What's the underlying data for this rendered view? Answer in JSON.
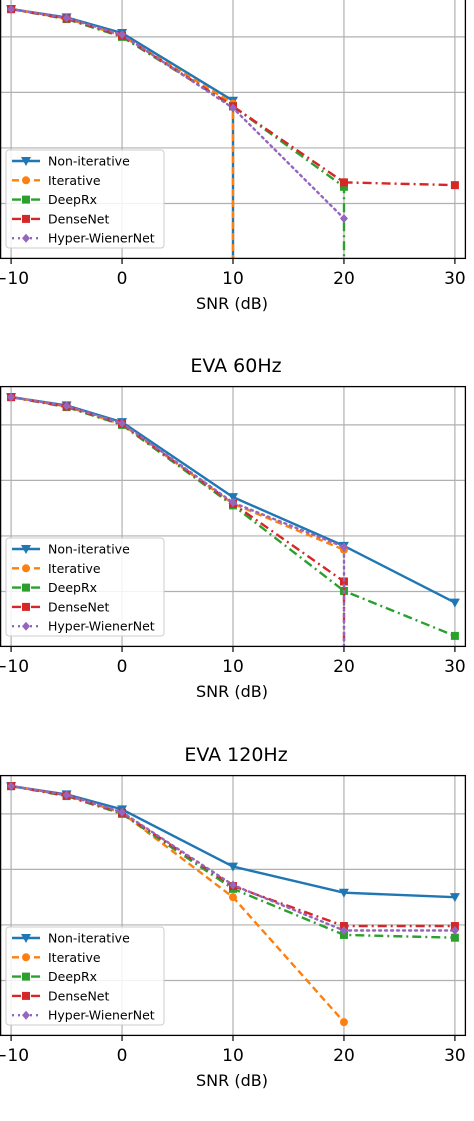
{
  "chart_data": [
    {
      "type": "line",
      "title": "",
      "xlabel": "SNR (dB)",
      "ylabel": "",
      "xticks": [
        -10,
        0,
        10,
        20,
        30
      ],
      "xlim": [
        -11,
        31
      ],
      "ylim": [
        -6.0,
        -1.3
      ],
      "grid": true,
      "legend_position": "lower-left",
      "series": [
        {
          "name": "Non-iterative",
          "color": "#1f77b4",
          "marker": "triangle-down",
          "linestyle": "solid",
          "x": [
            -10,
            -5,
            0,
            10,
            10
          ],
          "y": [
            -1.5,
            -1.65,
            -1.93,
            -3.15,
            -6.2
          ]
        },
        {
          "name": "Iterative",
          "color": "#ff7f0e",
          "marker": "circle",
          "linestyle": "dashed",
          "x": [
            -10,
            -5,
            0,
            10,
            10
          ],
          "y": [
            -1.5,
            -1.67,
            -1.98,
            -3.2,
            -6.2
          ]
        },
        {
          "name": "DeepRx",
          "color": "#2ca02c",
          "marker": "square",
          "linestyle": "dashdot",
          "x": [
            -10,
            -5,
            0,
            10,
            20,
            20
          ],
          "y": [
            -1.5,
            -1.68,
            -2.0,
            -3.25,
            -4.7,
            -6.2
          ]
        },
        {
          "name": "DenseNet",
          "color": "#d62728",
          "marker": "square",
          "linestyle": "dashdot",
          "x": [
            -10,
            -5,
            0,
            10,
            20,
            30
          ],
          "y": [
            -1.5,
            -1.67,
            -1.98,
            -3.25,
            -4.62,
            -4.67
          ]
        },
        {
          "name": "Hyper-WienerNet",
          "color": "#9467bd",
          "marker": "diamond",
          "linestyle": "dotted",
          "x": [
            -10,
            -5,
            0,
            10,
            20
          ],
          "y": [
            -1.5,
            -1.66,
            -1.96,
            -3.28,
            -5.27
          ]
        }
      ]
    },
    {
      "type": "line",
      "title": "EVA 60Hz",
      "xlabel": "SNR (dB)",
      "ylabel": "",
      "xticks": [
        -10,
        0,
        10,
        20,
        30
      ],
      "xlim": [
        -11,
        31
      ],
      "ylim": [
        -6.0,
        -1.3
      ],
      "grid": true,
      "legend_position": "lower-left",
      "series": [
        {
          "name": "Non-iterative",
          "color": "#1f77b4",
          "marker": "triangle-down",
          "linestyle": "solid",
          "x": [
            -10,
            -5,
            0,
            10,
            20,
            30
          ],
          "y": [
            -1.5,
            -1.65,
            -1.95,
            -3.3,
            -4.18,
            -5.2
          ]
        },
        {
          "name": "Iterative",
          "color": "#ff7f0e",
          "marker": "circle",
          "linestyle": "dashed",
          "x": [
            -10,
            -5,
            0,
            10,
            20
          ],
          "y": [
            -1.5,
            -1.67,
            -1.99,
            -3.42,
            -4.25
          ]
        },
        {
          "name": "DeepRx",
          "color": "#2ca02c",
          "marker": "square",
          "linestyle": "dashdot",
          "x": [
            -10,
            -5,
            0,
            10,
            20,
            30
          ],
          "y": [
            -1.5,
            -1.68,
            -2.0,
            -3.45,
            -4.99,
            -5.8
          ]
        },
        {
          "name": "DenseNet",
          "color": "#d62728",
          "marker": "square",
          "linestyle": "dashdot",
          "x": [
            -10,
            -5,
            0,
            10,
            20,
            20
          ],
          "y": [
            -1.5,
            -1.67,
            -1.98,
            -3.42,
            -4.82,
            -6.2
          ]
        },
        {
          "name": "Hyper-WienerNet",
          "color": "#9467bd",
          "marker": "diamond",
          "linestyle": "dotted",
          "x": [
            -10,
            -5,
            0,
            10,
            20,
            20
          ],
          "y": [
            -1.5,
            -1.66,
            -1.97,
            -3.4,
            -4.2,
            -6.2
          ]
        }
      ]
    },
    {
      "type": "line",
      "title": "EVA 120Hz",
      "xlabel": "SNR (dB)",
      "ylabel": "",
      "xticks": [
        -10,
        0,
        10,
        20,
        30
      ],
      "xlim": [
        -11,
        31
      ],
      "ylim": [
        -6.0,
        -1.3
      ],
      "grid": true,
      "legend_position": "lower-left",
      "series": [
        {
          "name": "Non-iterative",
          "color": "#1f77b4",
          "marker": "triangle-down",
          "linestyle": "solid",
          "x": [
            -10,
            -5,
            0,
            10,
            20,
            30
          ],
          "y": [
            -1.5,
            -1.65,
            -1.92,
            -2.95,
            -3.42,
            -3.5
          ]
        },
        {
          "name": "Iterative",
          "color": "#ff7f0e",
          "marker": "circle",
          "linestyle": "dashed",
          "x": [
            -10,
            -5,
            0,
            10,
            20
          ],
          "y": [
            -1.5,
            -1.67,
            -1.98,
            -3.5,
            -5.75
          ]
        },
        {
          "name": "DeepRx",
          "color": "#2ca02c",
          "marker": "square",
          "linestyle": "dashdot",
          "x": [
            -10,
            -5,
            0,
            10,
            20,
            30
          ],
          "y": [
            -1.5,
            -1.68,
            -2.0,
            -3.35,
            -4.18,
            -4.23
          ]
        },
        {
          "name": "DenseNet",
          "color": "#d62728",
          "marker": "square",
          "linestyle": "dashdot",
          "x": [
            -10,
            -5,
            0,
            10,
            20,
            30
          ],
          "y": [
            -1.5,
            -1.67,
            -1.98,
            -3.3,
            -4.02,
            -4.02
          ]
        },
        {
          "name": "Hyper-WienerNet",
          "color": "#9467bd",
          "marker": "diamond",
          "linestyle": "dotted",
          "x": [
            -10,
            -5,
            0,
            10,
            20,
            30
          ],
          "y": [
            -1.5,
            -1.66,
            -1.97,
            -3.28,
            -4.1,
            -4.1
          ]
        }
      ]
    }
  ]
}
